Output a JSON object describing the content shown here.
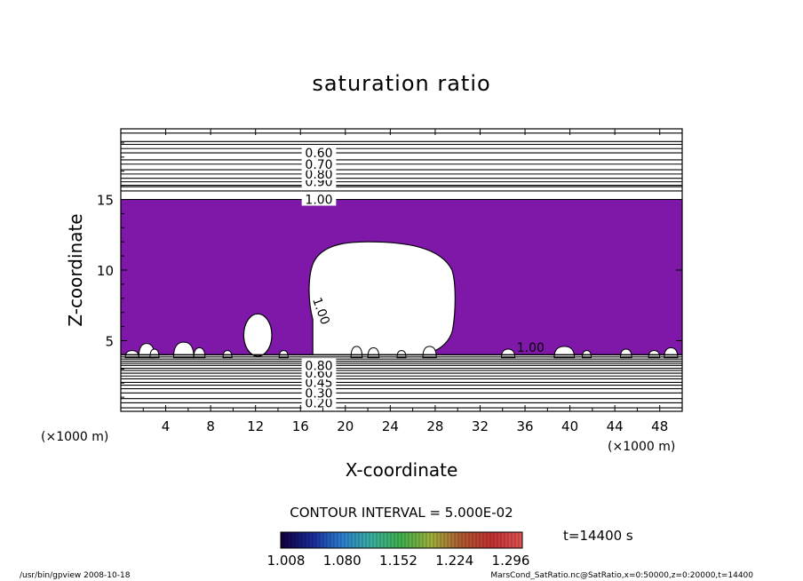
{
  "chart_data": {
    "type": "contour",
    "title": "saturation ratio",
    "xlabel": "X-coordinate",
    "ylabel": "Z-coordinate",
    "x_unit": "(×1000 m)",
    "z_unit": "(×1000 m)",
    "xlim": [
      0,
      50
    ],
    "zlim": [
      0,
      20
    ],
    "x_ticks": [
      "4",
      "8",
      "12",
      "16",
      "20",
      "24",
      "28",
      "32",
      "36",
      "40",
      "44",
      "48"
    ],
    "x_tick_values": [
      4,
      8,
      12,
      16,
      20,
      24,
      28,
      32,
      36,
      40,
      44,
      48
    ],
    "z_ticks": [
      "5",
      "10",
      "15"
    ],
    "z_tick_values": [
      5,
      10,
      15
    ],
    "fill_color": "#7f17a9",
    "fill_threshold": 1.0,
    "fill_layer_z": [
      4,
      15
    ],
    "upper_contours": [
      {
        "z": 15.0,
        "label": "1.00"
      },
      {
        "z": 16.25,
        "label": "0.90"
      },
      {
        "z": 16.8,
        "label": "0.80"
      },
      {
        "z": 17.5,
        "label": "0.70"
      },
      {
        "z": 18.3,
        "label": "0.60"
      }
    ],
    "upper_extra_lines_z": [
      15.6,
      15.9,
      16.0,
      16.5,
      17.1,
      17.8,
      18.6,
      18.9,
      19.1,
      19.7
    ],
    "lower_contours": [
      {
        "z": 0.6,
        "label": "0.20"
      },
      {
        "z": 1.3,
        "label": "0.30"
      },
      {
        "z": 2.05,
        "label": "0.45"
      },
      {
        "z": 2.7,
        "label": "0.60"
      },
      {
        "z": 3.25,
        "label": "0.80"
      }
    ],
    "lower_extra_lines_z": [
      0.25,
      0.9,
      1.6,
      1.85,
      2.3,
      2.5,
      2.9,
      3.05,
      3.4,
      3.55,
      3.7,
      3.85
    ],
    "contour_inline_labels": [
      {
        "text": "1.00",
        "x": 17.5,
        "z": 7.0
      },
      {
        "text": "1.00",
        "x": 36.5,
        "z": 4.2
      }
    ],
    "contour_interval_label": "CONTOUR INTERVAL = 5.000E-02",
    "colorbar": {
      "tick_labels": [
        "1.008",
        "1.080",
        "1.152",
        "1.224",
        "1.296"
      ],
      "colors": [
        "#100040",
        "#1a2a9a",
        "#2a7fd0",
        "#3ab0a0",
        "#3fb04a",
        "#9fb03a",
        "#b05a30",
        "#c03030",
        "#e05050"
      ]
    },
    "time_label": "t=14400 s"
  },
  "footer": {
    "left": "/usr/bin/gpview   2008-10-18",
    "right": "MarsCond_SatRatio.nc@SatRatio,x=0:50000,z=0:20000,t=14400"
  }
}
